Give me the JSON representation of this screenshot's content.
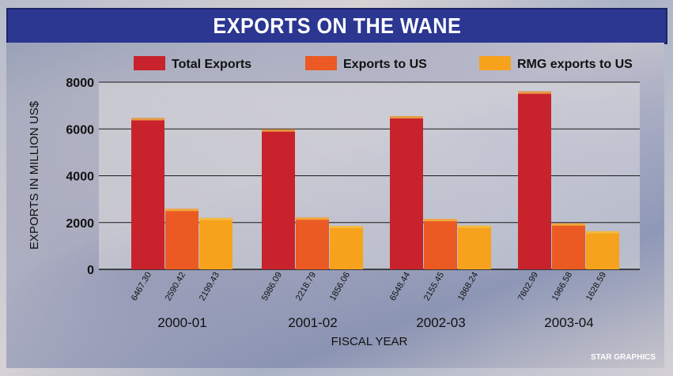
{
  "chart_data": {
    "type": "bar",
    "title": "EXPORTS ON THE WANE",
    "xlabel": "FISCAL YEAR",
    "ylabel": "EXPORTS IN MILLION US$",
    "ylim": [
      0,
      8000
    ],
    "yticks": [
      0,
      2000,
      4000,
      6000,
      8000
    ],
    "ytick_labels": [
      "0",
      "2000",
      "4000",
      "6000",
      "8000"
    ],
    "grid": true,
    "legend_position": "top",
    "categories": [
      "2000-01",
      "2001-02",
      "2002-03",
      "2003-04"
    ],
    "series": [
      {
        "name": "Total Exports",
        "color": "#c8232c",
        "values": [
          6467.3,
          5986.09,
          6548.44,
          7602.99
        ],
        "labels": [
          "6467.30",
          "5986.09",
          "6548.44",
          "7602.99"
        ]
      },
      {
        "name": "Exports to US",
        "color": "#ea5a22",
        "values": [
          2590.42,
          2218.79,
          2155.45,
          1966.58
        ],
        "labels": [
          "2590.42",
          "2218.79",
          "2155.45",
          "1966.58"
        ]
      },
      {
        "name": "RMG exports to US",
        "color": "#f6a21c",
        "values": [
          2199.43,
          1856.06,
          1868.24,
          1628.59
        ],
        "labels": [
          "2199.43",
          "1856.06",
          "1868.24",
          "1628.59"
        ]
      }
    ]
  },
  "credit": "STAR GRAPHICS"
}
